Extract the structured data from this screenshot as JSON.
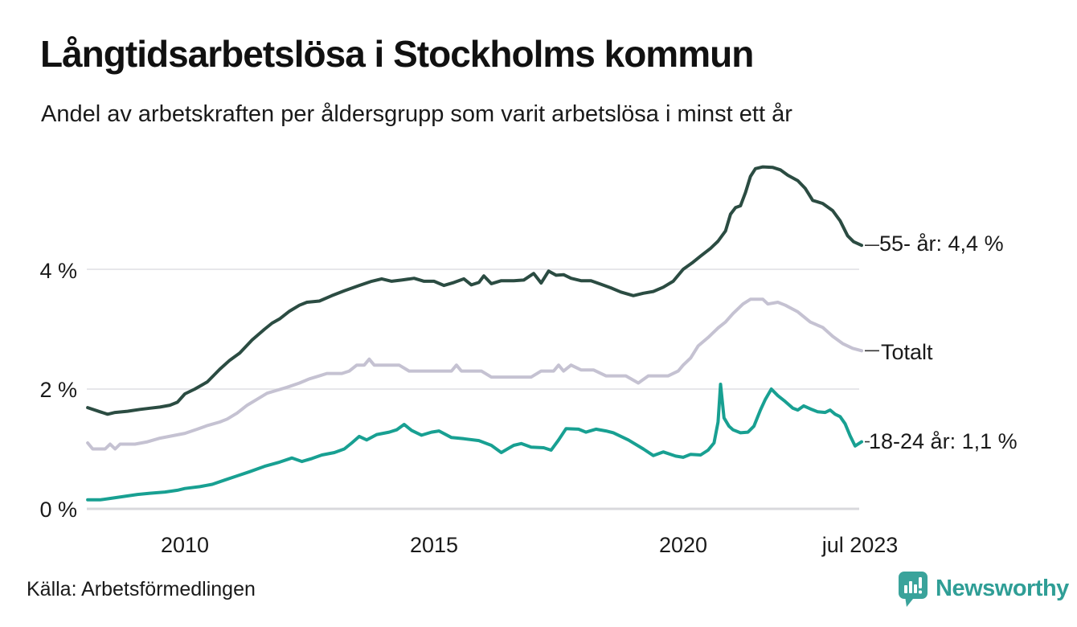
{
  "header": {
    "title": "Långtidsarbetslösa i Stockholms kommun",
    "subtitle": "Andel av arbetskraften per åldersgrupp som varit arbetslösa i minst ett år"
  },
  "footer": {
    "source": "Källa: Arbetsförmedlingen",
    "brand": "Newsworthy"
  },
  "colors": {
    "series_55": "#2b4c42",
    "series_total": "#c5c2d2",
    "series_young": "#18a092",
    "gridline": "#e7e7ea",
    "axisline": "#d9d9dc",
    "connector": "#333333",
    "brand_teal": "#3aa39b"
  },
  "chart_data": {
    "type": "line",
    "title": "Långtidsarbetslösa i Stockholms kommun",
    "subtitle": "Andel av arbetskraften per åldersgrupp som varit arbetslösa i minst ett år",
    "unit": "%",
    "grid": "horizontal",
    "legend_position": "right-end-labels",
    "x_range": [
      2008,
      2023.58
    ],
    "y_range": [
      0,
      6
    ],
    "x_axis": {
      "ticks": [
        {
          "label": "2010",
          "year": 2010
        },
        {
          "label": "2015",
          "year": 2015
        },
        {
          "label": "2020",
          "year": 2020
        },
        {
          "label": "jul 2023",
          "year": 2023.55
        }
      ]
    },
    "y_axis": {
      "ticks": [
        {
          "label": "0 %",
          "value": 0
        },
        {
          "label": "2 %",
          "value": 2
        },
        {
          "label": "4 %",
          "value": 4
        }
      ]
    },
    "series": [
      {
        "name": "55- år",
        "end_label": "55- år: 4,4 %",
        "last_value": "4,4 %",
        "color": "#2b4c42",
        "points": [
          [
            2008.05,
            1.69
          ],
          [
            2008.3,
            1.62
          ],
          [
            2008.45,
            1.58
          ],
          [
            2008.6,
            1.61
          ],
          [
            2008.85,
            1.63
          ],
          [
            2009.1,
            1.66
          ],
          [
            2009.3,
            1.68
          ],
          [
            2009.5,
            1.7
          ],
          [
            2009.7,
            1.73
          ],
          [
            2009.85,
            1.78
          ],
          [
            2010.0,
            1.92
          ],
          [
            2010.2,
            2.0
          ],
          [
            2010.45,
            2.12
          ],
          [
            2010.7,
            2.33
          ],
          [
            2010.9,
            2.48
          ],
          [
            2011.1,
            2.6
          ],
          [
            2011.35,
            2.82
          ],
          [
            2011.6,
            3.0
          ],
          [
            2011.75,
            3.1
          ],
          [
            2011.9,
            3.17
          ],
          [
            2012.1,
            3.3
          ],
          [
            2012.3,
            3.4
          ],
          [
            2012.45,
            3.45
          ],
          [
            2012.7,
            3.47
          ],
          [
            2012.95,
            3.56
          ],
          [
            2013.2,
            3.64
          ],
          [
            2013.5,
            3.73
          ],
          [
            2013.75,
            3.8
          ],
          [
            2013.95,
            3.84
          ],
          [
            2014.15,
            3.8
          ],
          [
            2014.35,
            3.82
          ],
          [
            2014.6,
            3.85
          ],
          [
            2014.8,
            3.8
          ],
          [
            2015.0,
            3.8
          ],
          [
            2015.2,
            3.73
          ],
          [
            2015.4,
            3.78
          ],
          [
            2015.6,
            3.84
          ],
          [
            2015.75,
            3.74
          ],
          [
            2015.9,
            3.78
          ],
          [
            2016.0,
            3.89
          ],
          [
            2016.15,
            3.76
          ],
          [
            2016.35,
            3.81
          ],
          [
            2016.6,
            3.81
          ],
          [
            2016.8,
            3.82
          ],
          [
            2017.0,
            3.93
          ],
          [
            2017.15,
            3.77
          ],
          [
            2017.3,
            3.97
          ],
          [
            2017.45,
            3.9
          ],
          [
            2017.6,
            3.91
          ],
          [
            2017.75,
            3.85
          ],
          [
            2017.95,
            3.81
          ],
          [
            2018.15,
            3.81
          ],
          [
            2018.35,
            3.75
          ],
          [
            2018.55,
            3.69
          ],
          [
            2018.75,
            3.62
          ],
          [
            2019.0,
            3.56
          ],
          [
            2019.2,
            3.6
          ],
          [
            2019.4,
            3.63
          ],
          [
            2019.6,
            3.7
          ],
          [
            2019.8,
            3.8
          ],
          [
            2020.0,
            4.0
          ],
          [
            2020.2,
            4.12
          ],
          [
            2020.35,
            4.22
          ],
          [
            2020.55,
            4.35
          ],
          [
            2020.7,
            4.47
          ],
          [
            2020.85,
            4.64
          ],
          [
            2020.95,
            4.92
          ],
          [
            2021.05,
            5.03
          ],
          [
            2021.15,
            5.06
          ],
          [
            2021.25,
            5.28
          ],
          [
            2021.35,
            5.55
          ],
          [
            2021.45,
            5.68
          ],
          [
            2021.6,
            5.71
          ],
          [
            2021.8,
            5.7
          ],
          [
            2021.95,
            5.66
          ],
          [
            2022.1,
            5.57
          ],
          [
            2022.3,
            5.48
          ],
          [
            2022.45,
            5.35
          ],
          [
            2022.6,
            5.15
          ],
          [
            2022.8,
            5.1
          ],
          [
            2023.0,
            4.98
          ],
          [
            2023.15,
            4.81
          ],
          [
            2023.3,
            4.56
          ],
          [
            2023.42,
            4.46
          ],
          [
            2023.58,
            4.4
          ]
        ]
      },
      {
        "name": "Totalt",
        "end_label": "Totalt",
        "last_value": "2,6 %",
        "color": "#c5c2d2",
        "points": [
          [
            2008.05,
            1.1
          ],
          [
            2008.15,
            1.0
          ],
          [
            2008.4,
            1.0
          ],
          [
            2008.5,
            1.08
          ],
          [
            2008.6,
            1.0
          ],
          [
            2008.7,
            1.08
          ],
          [
            2009.0,
            1.08
          ],
          [
            2009.25,
            1.12
          ],
          [
            2009.5,
            1.18
          ],
          [
            2009.75,
            1.22
          ],
          [
            2010.0,
            1.26
          ],
          [
            2010.25,
            1.33
          ],
          [
            2010.45,
            1.39
          ],
          [
            2010.7,
            1.45
          ],
          [
            2010.85,
            1.5
          ],
          [
            2011.05,
            1.6
          ],
          [
            2011.25,
            1.73
          ],
          [
            2011.45,
            1.83
          ],
          [
            2011.65,
            1.93
          ],
          [
            2011.85,
            1.98
          ],
          [
            2012.05,
            2.03
          ],
          [
            2012.3,
            2.1
          ],
          [
            2012.5,
            2.17
          ],
          [
            2012.7,
            2.22
          ],
          [
            2012.85,
            2.26
          ],
          [
            2013.15,
            2.26
          ],
          [
            2013.3,
            2.3
          ],
          [
            2013.45,
            2.4
          ],
          [
            2013.6,
            2.4
          ],
          [
            2013.7,
            2.5
          ],
          [
            2013.8,
            2.4
          ],
          [
            2014.3,
            2.4
          ],
          [
            2014.5,
            2.3
          ],
          [
            2014.75,
            2.3
          ],
          [
            2015.05,
            2.3
          ],
          [
            2015.35,
            2.3
          ],
          [
            2015.45,
            2.4
          ],
          [
            2015.55,
            2.3
          ],
          [
            2015.95,
            2.3
          ],
          [
            2016.15,
            2.2
          ],
          [
            2016.55,
            2.2
          ],
          [
            2016.95,
            2.2
          ],
          [
            2017.15,
            2.3
          ],
          [
            2017.4,
            2.3
          ],
          [
            2017.5,
            2.4
          ],
          [
            2017.6,
            2.3
          ],
          [
            2017.75,
            2.4
          ],
          [
            2017.95,
            2.32
          ],
          [
            2018.2,
            2.32
          ],
          [
            2018.45,
            2.22
          ],
          [
            2018.85,
            2.22
          ],
          [
            2019.1,
            2.1
          ],
          [
            2019.3,
            2.22
          ],
          [
            2019.7,
            2.22
          ],
          [
            2019.9,
            2.3
          ],
          [
            2020.0,
            2.4
          ],
          [
            2020.15,
            2.52
          ],
          [
            2020.3,
            2.72
          ],
          [
            2020.5,
            2.86
          ],
          [
            2020.7,
            3.02
          ],
          [
            2020.85,
            3.12
          ],
          [
            2021.0,
            3.26
          ],
          [
            2021.2,
            3.42
          ],
          [
            2021.35,
            3.5
          ],
          [
            2021.6,
            3.5
          ],
          [
            2021.7,
            3.42
          ],
          [
            2021.9,
            3.45
          ],
          [
            2022.05,
            3.4
          ],
          [
            2022.3,
            3.29
          ],
          [
            2022.55,
            3.12
          ],
          [
            2022.8,
            3.03
          ],
          [
            2023.0,
            2.88
          ],
          [
            2023.2,
            2.76
          ],
          [
            2023.4,
            2.68
          ],
          [
            2023.58,
            2.64
          ]
        ]
      },
      {
        "name": "18-24 år",
        "end_label": "18-24 år: 1,1 %",
        "last_value": "1,1 %",
        "color": "#18a092",
        "points": [
          [
            2008.05,
            0.15
          ],
          [
            2008.3,
            0.15
          ],
          [
            2008.55,
            0.18
          ],
          [
            2008.8,
            0.21
          ],
          [
            2009.05,
            0.24
          ],
          [
            2009.3,
            0.26
          ],
          [
            2009.6,
            0.28
          ],
          [
            2009.85,
            0.31
          ],
          [
            2010.0,
            0.34
          ],
          [
            2010.3,
            0.37
          ],
          [
            2010.55,
            0.41
          ],
          [
            2010.8,
            0.48
          ],
          [
            2011.05,
            0.55
          ],
          [
            2011.3,
            0.62
          ],
          [
            2011.6,
            0.71
          ],
          [
            2011.9,
            0.78
          ],
          [
            2012.15,
            0.85
          ],
          [
            2012.35,
            0.79
          ],
          [
            2012.55,
            0.84
          ],
          [
            2012.75,
            0.9
          ],
          [
            2013.0,
            0.94
          ],
          [
            2013.2,
            1.0
          ],
          [
            2013.35,
            1.1
          ],
          [
            2013.5,
            1.21
          ],
          [
            2013.65,
            1.15
          ],
          [
            2013.85,
            1.24
          ],
          [
            2014.1,
            1.28
          ],
          [
            2014.25,
            1.32
          ],
          [
            2014.4,
            1.41
          ],
          [
            2014.55,
            1.31
          ],
          [
            2014.75,
            1.23
          ],
          [
            2014.95,
            1.28
          ],
          [
            2015.1,
            1.3
          ],
          [
            2015.35,
            1.19
          ],
          [
            2015.6,
            1.17
          ],
          [
            2015.9,
            1.14
          ],
          [
            2016.15,
            1.06
          ],
          [
            2016.35,
            0.94
          ],
          [
            2016.6,
            1.06
          ],
          [
            2016.75,
            1.09
          ],
          [
            2016.95,
            1.03
          ],
          [
            2017.2,
            1.02
          ],
          [
            2017.35,
            0.98
          ],
          [
            2017.5,
            1.15
          ],
          [
            2017.65,
            1.34
          ],
          [
            2017.9,
            1.33
          ],
          [
            2018.05,
            1.28
          ],
          [
            2018.25,
            1.33
          ],
          [
            2018.45,
            1.3
          ],
          [
            2018.6,
            1.27
          ],
          [
            2018.9,
            1.15
          ],
          [
            2019.2,
            1.0
          ],
          [
            2019.4,
            0.89
          ],
          [
            2019.6,
            0.95
          ],
          [
            2019.85,
            0.88
          ],
          [
            2020.0,
            0.86
          ],
          [
            2020.15,
            0.91
          ],
          [
            2020.35,
            0.9
          ],
          [
            2020.5,
            0.98
          ],
          [
            2020.62,
            1.1
          ],
          [
            2020.7,
            1.45
          ],
          [
            2020.75,
            2.08
          ],
          [
            2020.82,
            1.52
          ],
          [
            2020.92,
            1.38
          ],
          [
            2021.0,
            1.32
          ],
          [
            2021.15,
            1.27
          ],
          [
            2021.3,
            1.28
          ],
          [
            2021.42,
            1.38
          ],
          [
            2021.55,
            1.65
          ],
          [
            2021.65,
            1.83
          ],
          [
            2021.77,
            2.0
          ],
          [
            2021.9,
            1.89
          ],
          [
            2022.05,
            1.79
          ],
          [
            2022.2,
            1.68
          ],
          [
            2022.3,
            1.65
          ],
          [
            2022.42,
            1.72
          ],
          [
            2022.55,
            1.67
          ],
          [
            2022.7,
            1.62
          ],
          [
            2022.85,
            1.61
          ],
          [
            2022.95,
            1.65
          ],
          [
            2023.05,
            1.58
          ],
          [
            2023.15,
            1.54
          ],
          [
            2023.25,
            1.42
          ],
          [
            2023.35,
            1.22
          ],
          [
            2023.45,
            1.05
          ],
          [
            2023.58,
            1.12
          ]
        ]
      }
    ]
  }
}
